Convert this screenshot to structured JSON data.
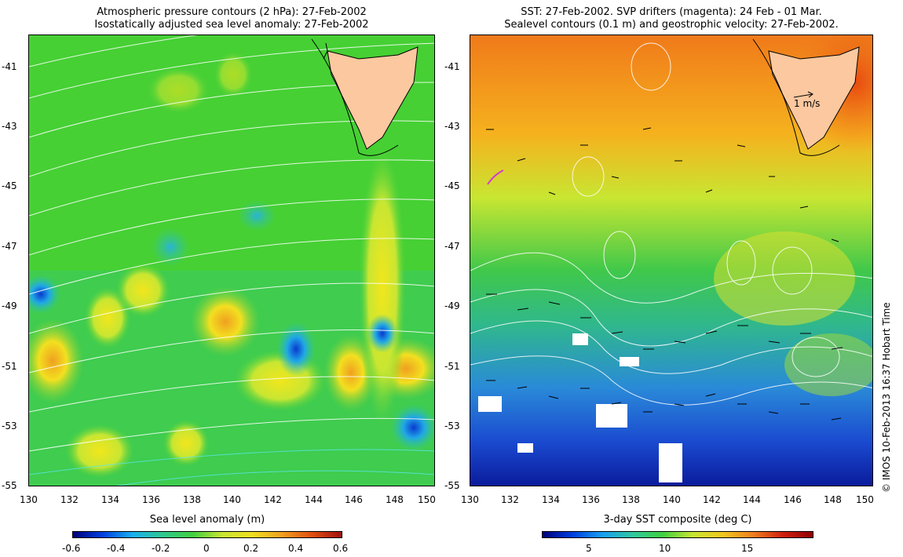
{
  "left_panel": {
    "title_line1": "Atmospheric pressure contours (2 hPa): 27-Feb-2002",
    "title_line2": "Isostatically adjusted sea level anomaly: 27-Feb-2002",
    "colorbar_label": "Sea level anomaly (m)",
    "colorbar_ticks": [
      "-0.6",
      "-0.4",
      "-0.2",
      "0",
      "0.2",
      "0.4",
      "0.6"
    ]
  },
  "right_panel": {
    "title_line1": "SST: 27-Feb-2002. SVP drifters (magenta): 24 Feb - 01 Mar.",
    "title_line2": "Sealevel contours (0.1 m) and geostrophic velocity: 27-Feb-2002.",
    "colorbar_label": "3-day SST composite (deg C)",
    "colorbar_ticks": [
      "5",
      "10",
      "15"
    ],
    "vector_scale_label": "1 m/s",
    "credit": "© IMOS 10-Feb-2013 16:37 Hobart Time"
  },
  "axes": {
    "lat_ticks": [
      "-41",
      "-43",
      "-45",
      "-47",
      "-49",
      "-51",
      "-53",
      "-55"
    ],
    "lon_ticks": [
      "130",
      "132",
      "134",
      "136",
      "138",
      "140",
      "142",
      "144",
      "146",
      "148",
      "150"
    ]
  },
  "colors": {
    "land": "#fbc8a0",
    "drifter": "#d23cd2",
    "contour": "#ffffff",
    "coast": "#000000"
  }
}
